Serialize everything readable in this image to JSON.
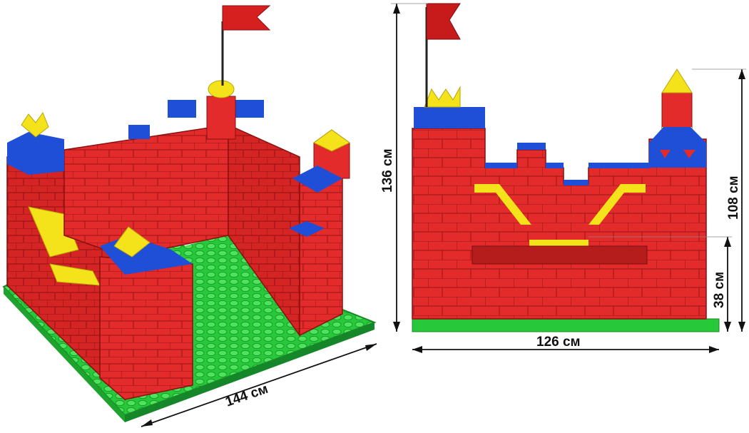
{
  "dimensions": {
    "length_label": "144 см",
    "height_label": "136 см",
    "width_label": "126 см",
    "tower_height_label": "108 см",
    "door_height_label": "38 см"
  },
  "colors": {
    "brick_red": "#e32b2b",
    "brick_red_dark": "#b51c1c",
    "accent_blue": "#1e4fd6",
    "accent_yellow": "#f4e21a",
    "base_green": "#27c83a",
    "flag_red": "#d61f1f"
  }
}
